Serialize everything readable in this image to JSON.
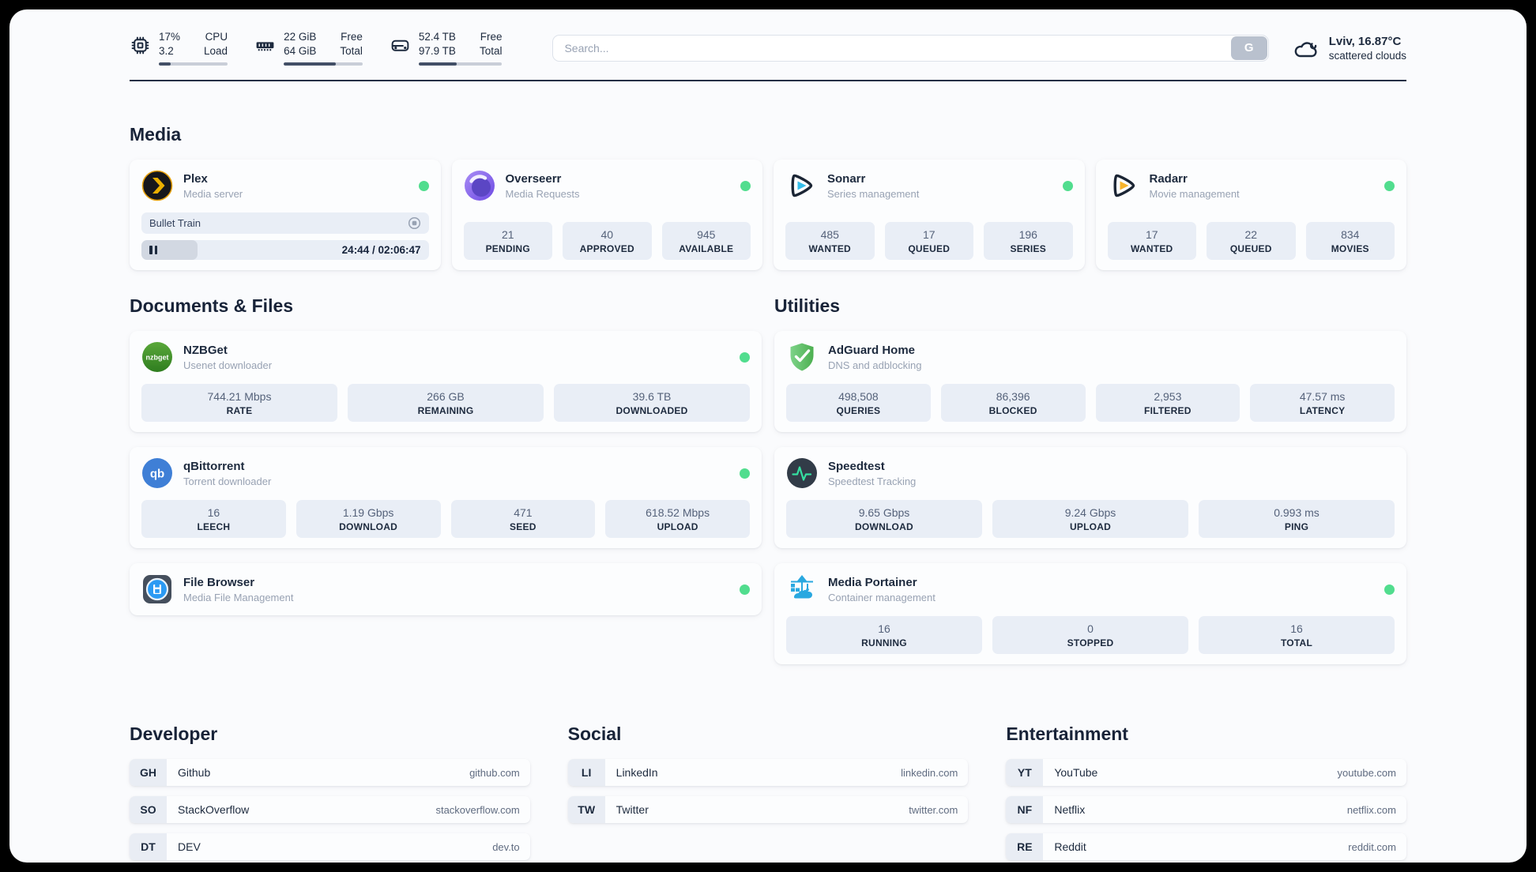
{
  "topbar": {
    "cpu": {
      "values": [
        "17%",
        "3.2"
      ],
      "labels": [
        "CPU",
        "Load"
      ],
      "progress": 17
    },
    "ram": {
      "values": [
        "22 GiB",
        "64 GiB"
      ],
      "labels": [
        "Free",
        "Total"
      ],
      "progress": 66
    },
    "disk": {
      "values": [
        "52.4 TB",
        "97.9 TB"
      ],
      "labels": [
        "Free",
        "Total"
      ],
      "progress": 46
    },
    "search": {
      "placeholder": "Search...",
      "button_label": "G"
    },
    "weather": {
      "location": "Lviv, 16.87°C",
      "condition": "scattered clouds"
    }
  },
  "sections": {
    "media": "Media",
    "documents": "Documents & Files",
    "utilities": "Utilities",
    "developer": "Developer",
    "social": "Social",
    "entertainment": "Entertainment"
  },
  "apps": {
    "plex": {
      "name": "Plex",
      "subtitle": "Media server",
      "now_playing": "Bullet Train",
      "time": "24:44 / 02:06:47",
      "progress": 19.5
    },
    "overseerr": {
      "name": "Overseerr",
      "subtitle": "Media Requests",
      "stats": [
        {
          "value": "21",
          "label": "PENDING"
        },
        {
          "value": "40",
          "label": "APPROVED"
        },
        {
          "value": "945",
          "label": "AVAILABLE"
        }
      ]
    },
    "sonarr": {
      "name": "Sonarr",
      "subtitle": "Series management",
      "stats": [
        {
          "value": "485",
          "label": "WANTED"
        },
        {
          "value": "17",
          "label": "QUEUED"
        },
        {
          "value": "196",
          "label": "SERIES"
        }
      ]
    },
    "radarr": {
      "name": "Radarr",
      "subtitle": "Movie management",
      "stats": [
        {
          "value": "17",
          "label": "WANTED"
        },
        {
          "value": "22",
          "label": "QUEUED"
        },
        {
          "value": "834",
          "label": "MOVIES"
        }
      ]
    },
    "nzbget": {
      "name": "NZBGet",
      "subtitle": "Usenet downloader",
      "stats": [
        {
          "value": "744.21 Mbps",
          "label": "RATE"
        },
        {
          "value": "266 GB",
          "label": "REMAINING"
        },
        {
          "value": "39.6 TB",
          "label": "DOWNLOADED"
        }
      ]
    },
    "qbittorrent": {
      "name": "qBittorrent",
      "subtitle": "Torrent downloader",
      "stats": [
        {
          "value": "16",
          "label": "LEECH"
        },
        {
          "value": "1.19 Gbps",
          "label": "DOWNLOAD"
        },
        {
          "value": "471",
          "label": "SEED"
        },
        {
          "value": "618.52 Mbps",
          "label": "UPLOAD"
        }
      ]
    },
    "filebrowser": {
      "name": "File Browser",
      "subtitle": "Media File Management"
    },
    "adguard": {
      "name": "AdGuard Home",
      "subtitle": "DNS and adblocking",
      "stats": [
        {
          "value": "498,508",
          "label": "QUERIES"
        },
        {
          "value": "86,396",
          "label": "BLOCKED"
        },
        {
          "value": "2,953",
          "label": "FILTERED"
        },
        {
          "value": "47.57 ms",
          "label": "LATENCY"
        }
      ]
    },
    "speedtest": {
      "name": "Speedtest",
      "subtitle": "Speedtest Tracking",
      "stats": [
        {
          "value": "9.65 Gbps",
          "label": "DOWNLOAD"
        },
        {
          "value": "9.24 Gbps",
          "label": "UPLOAD"
        },
        {
          "value": "0.993 ms",
          "label": "PING"
        }
      ]
    },
    "portainer": {
      "name": "Media Portainer",
      "subtitle": "Container management",
      "stats": [
        {
          "value": "16",
          "label": "RUNNING"
        },
        {
          "value": "0",
          "label": "STOPPED"
        },
        {
          "value": "16",
          "label": "TOTAL"
        }
      ]
    }
  },
  "links": {
    "developer": [
      {
        "badge": "GH",
        "name": "Github",
        "url": "github.com"
      },
      {
        "badge": "SO",
        "name": "StackOverflow",
        "url": "stackoverflow.com"
      },
      {
        "badge": "DT",
        "name": "DEV",
        "url": "dev.to"
      }
    ],
    "social": [
      {
        "badge": "LI",
        "name": "LinkedIn",
        "url": "linkedin.com"
      },
      {
        "badge": "TW",
        "name": "Twitter",
        "url": "twitter.com"
      }
    ],
    "entertainment": [
      {
        "badge": "YT",
        "name": "YouTube",
        "url": "youtube.com"
      },
      {
        "badge": "NF",
        "name": "Netflix",
        "url": "netflix.com"
      },
      {
        "badge": "RE",
        "name": "Reddit",
        "url": "reddit.com"
      }
    ]
  }
}
